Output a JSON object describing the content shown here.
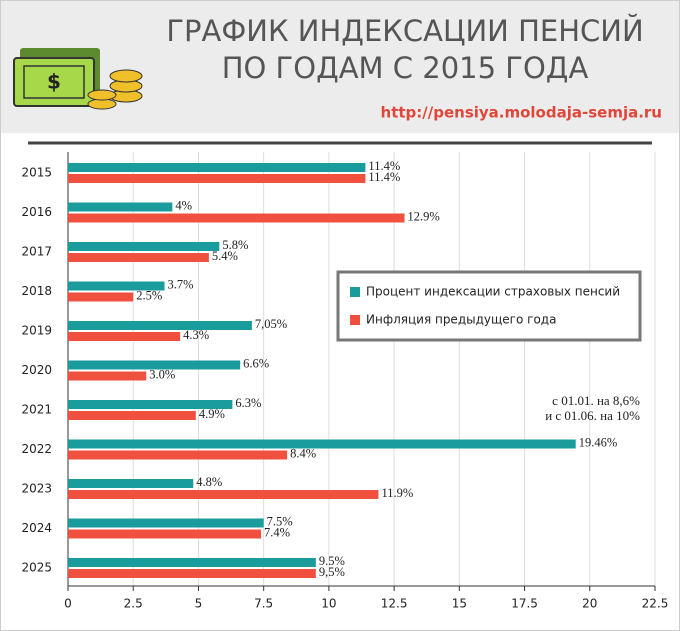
{
  "header": {
    "title_lines": [
      "ГРАФИК ИНДЕКСАЦИИ ПЕНСИЙ",
      "ПО ГОДАМ С 2015 ГОДА"
    ],
    "url": "http://pensiya.molodaja-semja.ru"
  },
  "chart_data": {
    "type": "bar",
    "orientation": "horizontal",
    "categories": [
      "2015",
      "2016",
      "2017",
      "2018",
      "2019",
      "2020",
      "2021",
      "2022",
      "2023",
      "2024",
      "2025"
    ],
    "series": [
      {
        "name": "Процент индексации страховых пенсий",
        "color": "#1a9c9c",
        "values": [
          11.4,
          4,
          5.8,
          3.7,
          7.05,
          6.6,
          6.3,
          19.46,
          4.8,
          7.5,
          9.5
        ],
        "value_labels": [
          "11.4%",
          "4%",
          "5.8%",
          "3.7%",
          "7,05%",
          "6.6%",
          "6.3%",
          "19.46%",
          "4.8%",
          "7.5%",
          "9.5%"
        ]
      },
      {
        "name": "Инфляция предыдущего года",
        "color": "#f0513f",
        "values": [
          11.4,
          12.9,
          5.4,
          2.5,
          4.3,
          3.0,
          4.9,
          8.4,
          11.9,
          7.4,
          9.5
        ],
        "value_labels": [
          "11.4%",
          "12.9%",
          "5.4%",
          "2.5%",
          "4.3%",
          "3.0%",
          "4.9%",
          "8.4%",
          "11.9%",
          "7.4%",
          "9,5%"
        ]
      }
    ],
    "xlim": [
      0,
      22.5
    ],
    "xticks": [
      0,
      2.5,
      5,
      7.5,
      10,
      12.5,
      15,
      17.5,
      20,
      22.5
    ],
    "grid": true,
    "legend": "right",
    "annotations": [
      "с 01.01. на 8,6%",
      "и с 01.06. на 10%"
    ]
  }
}
